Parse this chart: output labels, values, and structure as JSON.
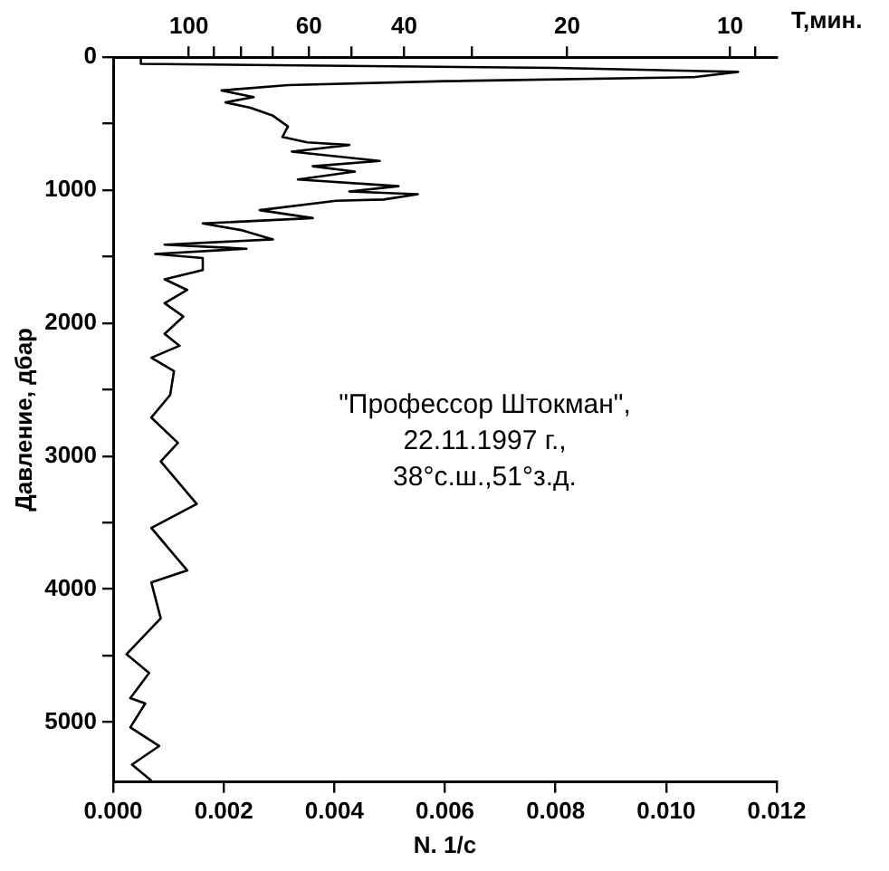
{
  "chart_data": {
    "type": "line",
    "xlabel": "N. 1/с",
    "ylabel": "Давление, дбар",
    "x2label": "T,мин.",
    "xlim": [
      0,
      0.012
    ],
    "xticks": [
      {
        "value": 0,
        "label": "0.000"
      },
      0.002,
      0.004,
      0.006,
      0.008,
      {
        "value": 0.01,
        "label": "0.010"
      },
      0.012
    ],
    "x2lim": [
      138,
      8.2
    ],
    "log": "x2",
    "x2ticks": [
      100,
      {
        "value": 90,
        "label": null
      },
      {
        "value": 80,
        "label": null
      },
      {
        "value": 70,
        "label": null
      },
      60,
      {
        "value": 50,
        "label": null
      },
      40,
      {
        "value": 30,
        "label": null
      },
      20,
      10,
      {
        "value": 9,
        "label": null
      }
    ],
    "ylim": [
      5450,
      0
    ],
    "yticks": [
      0,
      {
        "value": 500,
        "label": null
      },
      1000,
      {
        "value": 1500,
        "label": null
      },
      2000,
      {
        "value": 2500,
        "label": null
      },
      3000,
      {
        "value": 3500,
        "label": null
      },
      4000,
      {
        "value": 4500,
        "label": null
      },
      5000
    ],
    "grid": false,
    "legend": false,
    "marker": "none",
    "line_style": "solid",
    "annotations": [
      "\"Профессор Штокман\",",
      "22.11.1997 г.,",
      "38°с.ш.,51°з.д."
    ],
    "series": [
      {
        "color": "#000000",
        "x": [
          0.0005,
          0.0005,
          0.008,
          0.0113,
          0.0105,
          0.006,
          0.00316,
          0.00196,
          0.00254,
          0.00203,
          0.00248,
          0.00289,
          0.00316,
          0.00306,
          0.00351,
          0.00427,
          0.00323,
          0.00482,
          0.00361,
          0.00437,
          0.00334,
          0.00516,
          0.00427,
          0.00551,
          0.00489,
          0.00403,
          0.00265,
          0.00361,
          0.00162,
          0.00231,
          0.00289,
          0.00093,
          0.00241,
          0.00076,
          0.00162,
          0.00162,
          0.00093,
          0.00134,
          0.00093,
          0.00127,
          0.00093,
          0.0012,
          0.00069,
          0.0011,
          0.00103,
          0.00069,
          0.00117,
          0.00086,
          0.00151,
          0.00069,
          0.00134,
          0.00069,
          0.00086,
          0.00024,
          0.00065,
          0.00031,
          0.00058,
          0.00031,
          0.00083,
          0.00034,
          0.00069
        ],
        "values": [
          10,
          50,
          80,
          110,
          150,
          180,
          210,
          250,
          300,
          340,
          380,
          440,
          520,
          600,
          640,
          660,
          710,
          780,
          820,
          860,
          920,
          970,
          1010,
          1030,
          1070,
          1080,
          1150,
          1210,
          1250,
          1300,
          1370,
          1410,
          1440,
          1480,
          1510,
          1600,
          1670,
          1750,
          1850,
          1950,
          2080,
          2170,
          2260,
          2360,
          2540,
          2710,
          2900,
          3040,
          3360,
          3540,
          3860,
          3950,
          4220,
          4490,
          4630,
          4820,
          4860,
          5040,
          5180,
          5320,
          5440
        ]
      }
    ]
  }
}
